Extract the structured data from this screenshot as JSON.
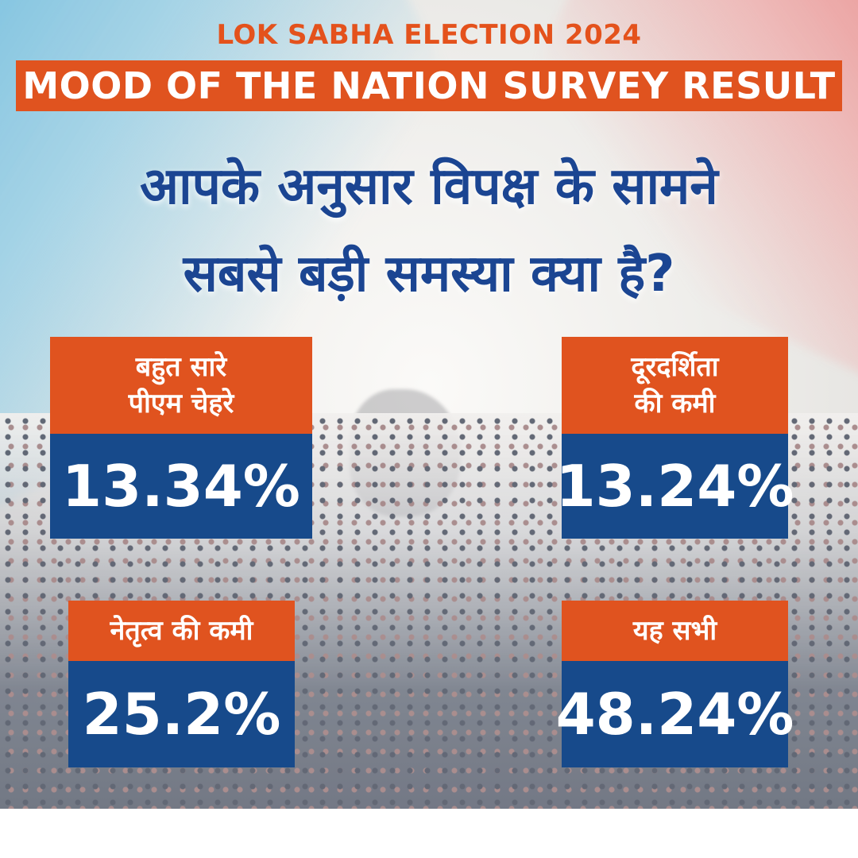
{
  "header": {
    "kicker": "LOK SABHA ELECTION 2024",
    "banner": "MOOD OF THE NATION SURVEY RESULT"
  },
  "question": {
    "line1": "आपके अनुसार विपक्ष के सामने",
    "line2": "सबसे बड़ी समस्या क्या है?"
  },
  "results": [
    {
      "label_line1": "बहुत सारे",
      "label_line2": "पीएम चेहरे",
      "value": "13.34%"
    },
    {
      "label_line1": "दूरदर्शिता",
      "label_line2": "की कमी",
      "value": "13.24%"
    },
    {
      "label_line1": "नेतृत्व की कमी",
      "value": "25.2%"
    },
    {
      "label_line1": "यह सभी",
      "value": "48.24%"
    }
  ],
  "colors": {
    "accent_orange": "#e0531f",
    "accent_blue": "#174a8b",
    "question_blue": "#1b4592"
  }
}
